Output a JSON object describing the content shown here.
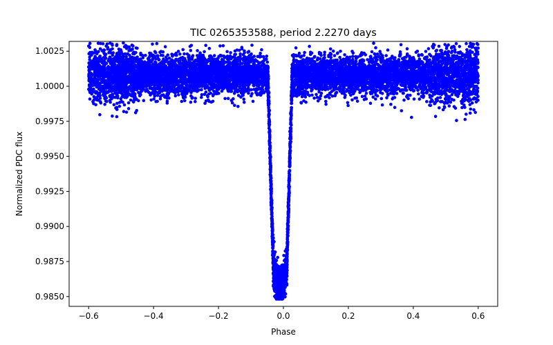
{
  "chart_data": {
    "type": "scatter",
    "title": "TIC 0265353588, period 2.2270 days",
    "xlabel": "Phase",
    "ylabel": "Normalized PDC flux",
    "xlim": [
      -0.66,
      0.66
    ],
    "ylim": [
      0.9843,
      1.0032
    ],
    "x_ticks": [
      -0.6,
      -0.4,
      -0.2,
      0.0,
      0.2,
      0.4,
      0.6
    ],
    "x_tick_labels": [
      "−0.6",
      "−0.4",
      "−0.2",
      "0.0",
      "0.2",
      "0.4",
      "0.6"
    ],
    "y_ticks": [
      0.985,
      0.9875,
      0.99,
      0.9925,
      0.995,
      0.9975,
      1.0,
      1.0025
    ],
    "y_tick_labels": [
      "0.9850",
      "0.9875",
      "0.9900",
      "0.9925",
      "0.9950",
      "0.9975",
      "1.0000",
      "1.0025"
    ],
    "grid": false,
    "legend": "none",
    "marker_color": "#0000ff",
    "phase_range": [
      -0.6,
      0.6
    ],
    "out_of_transit_flux": 1.0008,
    "out_of_transit_scatter": 0.0007,
    "transit_ingress": -0.048,
    "transit_egress": 0.027,
    "transit_min_flux": 0.9858,
    "transit_min_phase": -0.01,
    "observed_min_flux": 0.9848,
    "observed_max_flux": 1.0031
  }
}
